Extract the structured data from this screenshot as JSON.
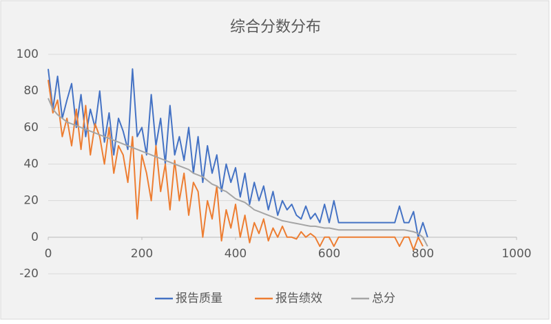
{
  "chart_data": {
    "type": "line",
    "title": "综合分数分布",
    "x": [
      0,
      10,
      20,
      30,
      40,
      50,
      60,
      70,
      80,
      90,
      100,
      110,
      120,
      130,
      140,
      150,
      160,
      170,
      180,
      190,
      200,
      210,
      220,
      230,
      240,
      250,
      260,
      270,
      280,
      290,
      300,
      310,
      320,
      330,
      340,
      350,
      360,
      370,
      380,
      390,
      400,
      410,
      420,
      430,
      440,
      450,
      460,
      470,
      480,
      490,
      500,
      510,
      520,
      530,
      540,
      550,
      560,
      570,
      580,
      590,
      600,
      610,
      620,
      630,
      640,
      650,
      660,
      670,
      680,
      690,
      700,
      710,
      720,
      730,
      740,
      750,
      760,
      770,
      780,
      790,
      800,
      810
    ],
    "series": [
      {
        "name": "报告质量",
        "color": "#4472c4",
        "values": [
          92,
          70,
          88,
          65,
          75,
          84,
          60,
          78,
          55,
          70,
          60,
          80,
          52,
          68,
          45,
          65,
          58,
          48,
          92,
          55,
          60,
          45,
          78,
          50,
          65,
          40,
          72,
          45,
          55,
          42,
          60,
          35,
          55,
          30,
          50,
          35,
          45,
          25,
          40,
          30,
          38,
          22,
          35,
          18,
          30,
          20,
          28,
          15,
          25,
          12,
          20,
          15,
          18,
          12,
          10,
          17,
          10,
          13,
          8,
          18,
          8,
          20,
          8,
          8,
          8,
          8,
          8,
          8,
          8,
          8,
          8,
          8,
          8,
          8,
          8,
          17,
          8,
          8,
          14,
          0,
          8,
          0
        ]
      },
      {
        "name": "报告绩效",
        "color": "#ed7d31",
        "values": [
          86,
          68,
          75,
          55,
          65,
          50,
          70,
          48,
          72,
          45,
          62,
          55,
          40,
          60,
          35,
          50,
          45,
          30,
          55,
          10,
          45,
          35,
          20,
          50,
          25,
          40,
          15,
          42,
          20,
          35,
          12,
          30,
          25,
          0,
          20,
          10,
          28,
          -2,
          15,
          5,
          18,
          0,
          12,
          -3,
          8,
          2,
          10,
          -2,
          5,
          0,
          6,
          0,
          0,
          -1,
          3,
          0,
          2,
          0,
          -5,
          0,
          0,
          -5,
          0,
          0,
          0,
          0,
          0,
          0,
          0,
          0,
          0,
          0,
          0,
          0,
          0,
          -5,
          0,
          0,
          -7,
          0,
          -5,
          null
        ]
      },
      {
        "name": "总分",
        "color": "#a5a5a5",
        "values": [
          76,
          70,
          67,
          65,
          63,
          62,
          61,
          60,
          59,
          58,
          57,
          56,
          55,
          54,
          53,
          52,
          51,
          50,
          49,
          48,
          47,
          46,
          45,
          44,
          43,
          42,
          41,
          40,
          39,
          38,
          37,
          35,
          34,
          33,
          31,
          29,
          28,
          26,
          25,
          23,
          21,
          20,
          19,
          17,
          15,
          14,
          13,
          12,
          11,
          10,
          9,
          8.5,
          8,
          7.5,
          7,
          6.5,
          6,
          6,
          5.5,
          5,
          5,
          4.5,
          4,
          4,
          4,
          4,
          4,
          4,
          4,
          4,
          4,
          4,
          4,
          4,
          4,
          4,
          4,
          3.5,
          3,
          2,
          0,
          -5
        ]
      }
    ],
    "xlim": [
      0,
      1000
    ],
    "xticks": [
      0,
      200,
      400,
      600,
      800,
      1000
    ],
    "ylim": [
      -20,
      100
    ],
    "yticks": [
      -20,
      0,
      20,
      40,
      60,
      80,
      100
    ],
    "grid": true,
    "legend": "bottom"
  }
}
